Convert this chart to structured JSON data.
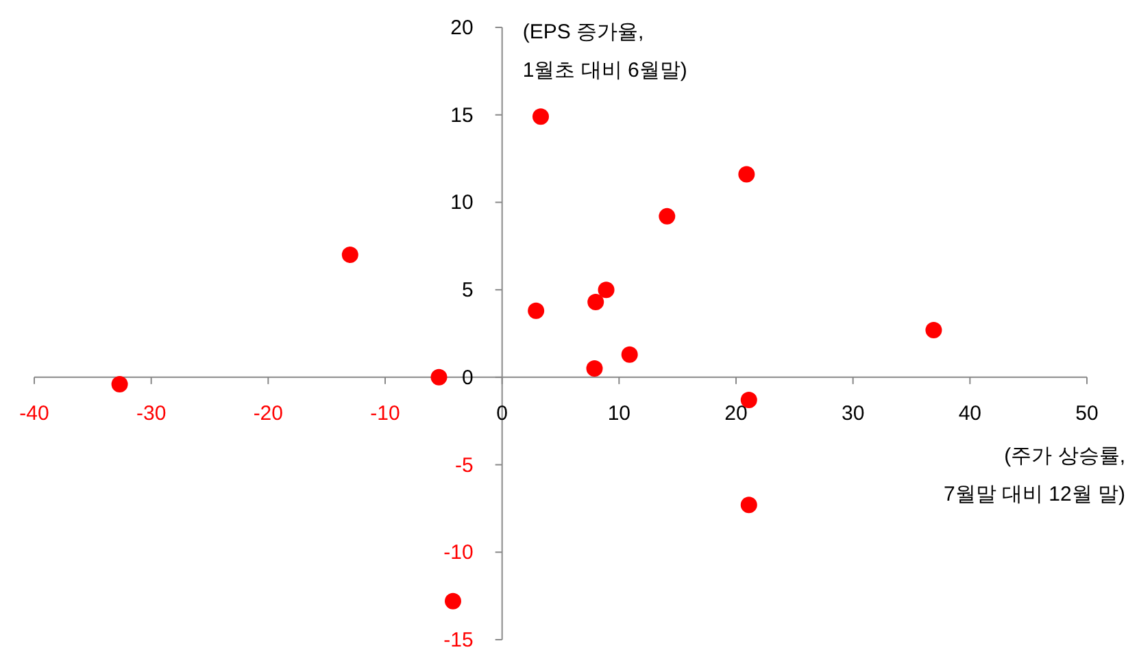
{
  "chart_data": {
    "type": "scatter",
    "xlabel": "(주가 상승률,\n7월말 대비 12월 말)",
    "ylabel": "(EPS 증가율,\n1월초 대비 6월말)",
    "series": [
      {
        "color": "#ff0000",
        "x": [
          -32.7,
          -13.0,
          -5.4,
          -4.2,
          2.9,
          3.3,
          8.0,
          8.9,
          7.9,
          10.9,
          14.1,
          20.9,
          21.1,
          21.1,
          36.9
        ],
        "values": [
          -0.4,
          7.0,
          0,
          -12.8,
          3.8,
          14.9,
          4.3,
          5.0,
          0.5,
          1.3,
          9.2,
          11.6,
          -1.3,
          -7.3,
          2.7
        ]
      }
    ],
    "marker": "circle",
    "grid": false,
    "xlim": [
      -40,
      50
    ],
    "xticks": [
      -40,
      -30,
      -20,
      -10,
      0,
      10,
      20,
      30,
      40,
      50
    ],
    "ylim": [
      -15,
      20
    ],
    "yticks": [
      -15,
      -10,
      -5,
      0,
      5,
      10,
      15,
      20
    ]
  }
}
